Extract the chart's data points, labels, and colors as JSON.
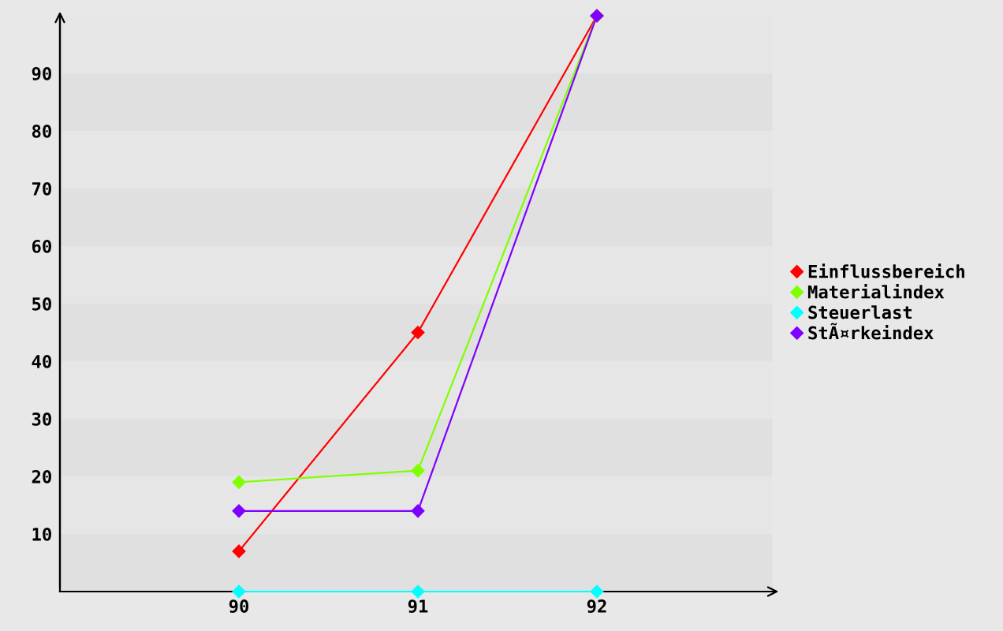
{
  "chart_data": {
    "type": "line",
    "x": [
      90,
      91,
      92
    ],
    "xlim": [
      89,
      93
    ],
    "xticks": [
      90,
      91,
      92
    ],
    "ylim": [
      0,
      100
    ],
    "yticks": [
      10,
      20,
      30,
      40,
      50,
      60,
      70,
      80,
      90
    ],
    "grid": false,
    "bands": [
      {
        "axis": "y",
        "from": 0,
        "to": 10,
        "color": "#e0e0e0"
      },
      {
        "axis": "y",
        "from": 20,
        "to": 30,
        "color": "#e0e0e0"
      },
      {
        "axis": "y",
        "from": 40,
        "to": 50,
        "color": "#e0e0e0"
      },
      {
        "axis": "y",
        "from": 60,
        "to": 70,
        "color": "#e0e0e0"
      },
      {
        "axis": "y",
        "from": 80,
        "to": 90,
        "color": "#e0e0e0"
      }
    ],
    "legend": "right",
    "marker": "diamond",
    "line_style": "solid",
    "series": [
      {
        "name": "Einflussbereich",
        "color": "#ff0000",
        "values": [
          7,
          45,
          100
        ]
      },
      {
        "name": "Materialindex",
        "color": "#80ff00",
        "values": [
          19,
          21,
          100
        ]
      },
      {
        "name": "Steuerlast",
        "color": "#00ffff",
        "values": [
          0,
          0,
          0
        ]
      },
      {
        "name": "StÃ¤rkeindex",
        "color": "#8000ff",
        "values": [
          14,
          14,
          100
        ]
      }
    ]
  }
}
